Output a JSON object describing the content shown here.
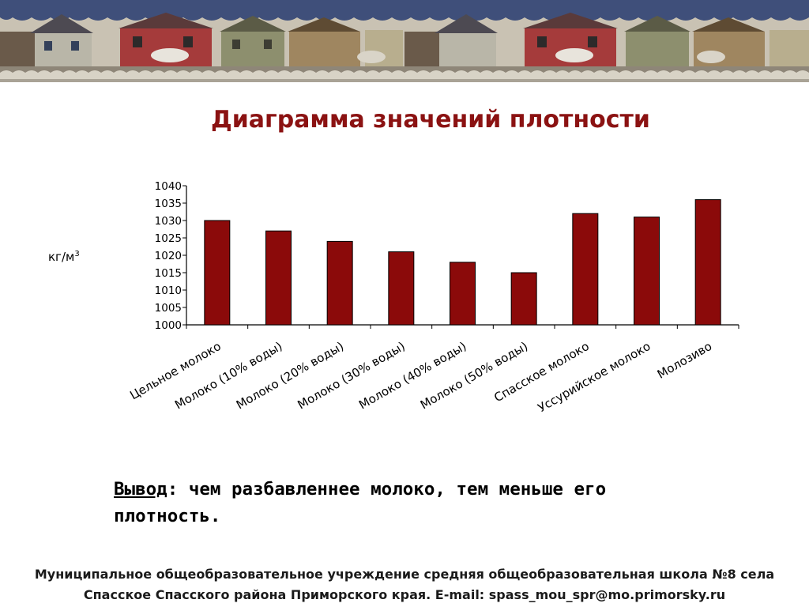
{
  "slide": {
    "title": "Диаграмма значений плотности",
    "conclusion_label": "Вывод",
    "conclusion_text": ": чем разбавленнее молоко, тем меньше его плотность.",
    "footer_line1": "Муниципальное общеобразовательное учреждение средняя общеобразовательная школа №8 села",
    "footer_line2": "Спасское Спасского района Приморского края. E-mail: spass_mou_spr@mo.primorsky.ru"
  },
  "chart_data": {
    "type": "bar",
    "title": "",
    "ylabel": "кг/м",
    "ylabel_superscript": "3",
    "xlabel": "",
    "categories": [
      "Цельное молоко",
      "Молоко (10% воды)",
      "Молоко (20% воды)",
      "Молоко (30% воды)",
      "Молоко (40% воды)",
      "Молоко (50% воды)",
      "Спасское молоко",
      "Уссурийское молоко",
      "Молозиво"
    ],
    "values": [
      1030,
      1027,
      1024,
      1021,
      1018,
      1015,
      1032,
      1031,
      1036
    ],
    "ylim": [
      1000,
      1040
    ],
    "yticks": [
      1000,
      1005,
      1010,
      1015,
      1020,
      1025,
      1030,
      1035,
      1040
    ],
    "grid": false,
    "legend": "none",
    "bar_color": "#8b0a0a"
  },
  "colors": {
    "title": "#8b1212",
    "bar": "#8b0a0a",
    "bar_outline": "#000000"
  }
}
